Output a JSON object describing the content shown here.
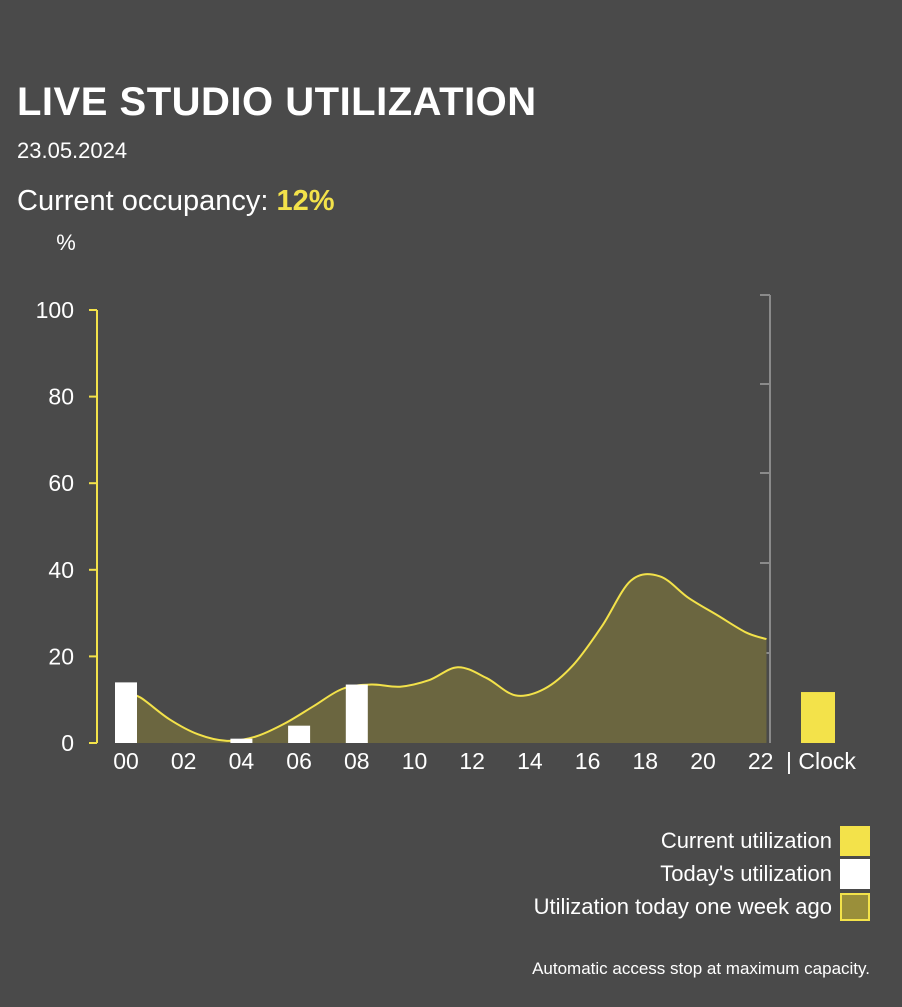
{
  "header": {
    "title": "LIVE STUDIO UTILIZATION",
    "date": "23.05.2024",
    "occupancy_label": "Current occupancy:",
    "occupancy_value": "12%"
  },
  "chart_data": {
    "type": "area",
    "ylabel": "%",
    "xlabel": "| Clock",
    "ylim": [
      0,
      100
    ],
    "y_ticks": [
      "0",
      "20",
      "40",
      "60",
      "80",
      "100"
    ],
    "x_ticks": [
      "00",
      "02",
      "04",
      "06",
      "08",
      "10",
      "12",
      "14",
      "16",
      "18",
      "20",
      "22"
    ],
    "today_bars": [
      {
        "hour": 0,
        "value": 14
      },
      {
        "hour": 2,
        "value": 0
      },
      {
        "hour": 4,
        "value": 1
      },
      {
        "hour": 6,
        "value": 4
      },
      {
        "hour": 8,
        "value": 13.5
      }
    ],
    "week_ago_series": {
      "hours": [
        0,
        0.5,
        1.5,
        2.5,
        3.5,
        4.5,
        5.5,
        6.5,
        7.5,
        8.5,
        9.5,
        10.5,
        11.5,
        12.5,
        13.5,
        14.5,
        15.5,
        16.5,
        17.5,
        18.5,
        19.5,
        20.5,
        21.5,
        22.2
      ],
      "values": [
        11.5,
        10.5,
        5.5,
        2,
        0.5,
        1.5,
        4.5,
        8.5,
        12.5,
        13.5,
        13,
        14.5,
        17.5,
        15,
        11,
        12.5,
        18,
        27,
        37.5,
        38.5,
        33.5,
        29.5,
        25.5,
        24
      ]
    },
    "current_value": 12,
    "colors": {
      "current": "#f3e24a",
      "today": "#ffffff",
      "week_ago_fill": "#6b6640",
      "week_ago_line": "#f3e24a",
      "axis": "#f3e24a"
    }
  },
  "legend": {
    "current": "Current utilization",
    "today": "Today's utilization",
    "week_ago": "Utilization today one week ago"
  },
  "footnote": "Automatic access stop at maximum capacity."
}
